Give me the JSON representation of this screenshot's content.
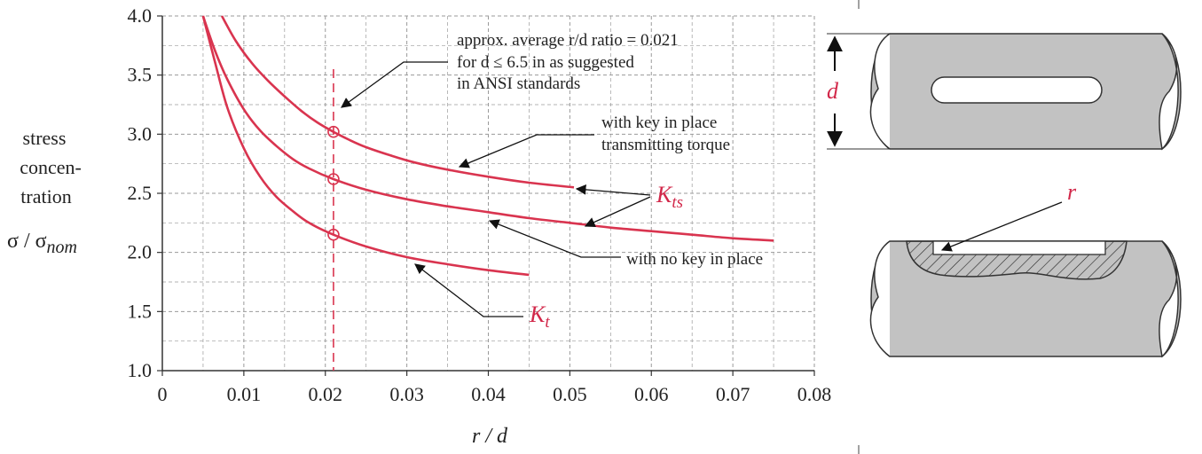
{
  "colors": {
    "curve": "#d9344f",
    "marker": "#d9344f",
    "grid": "#9a9a9a",
    "text": "#222222",
    "shaft_fill": "#c4c4c4"
  },
  "chart_data": {
    "type": "line",
    "xlabel": "r / d",
    "ylabel_lines": [
      "stress",
      "concen-",
      "tration"
    ],
    "ylabel_formula": {
      "sigma": "σ / σ",
      "sub": "nom"
    },
    "xlim": [
      0,
      0.08
    ],
    "ylim": [
      1.0,
      4.0
    ],
    "x_ticks": [
      "0",
      "0.01",
      "0.02",
      "0.03",
      "0.04",
      "0.05",
      "0.06",
      "0.07",
      "0.08"
    ],
    "y_ticks": [
      "1.0",
      "1.5",
      "2.0",
      "2.5",
      "3.0",
      "3.5",
      "4.0"
    ],
    "grid": true,
    "series": [
      {
        "x": [
          0.0073,
          0.009,
          0.011,
          0.013,
          0.015,
          0.017,
          0.019,
          0.021,
          0.023,
          0.025,
          0.028,
          0.031,
          0.035,
          0.04,
          0.045,
          0.0505
        ],
        "y": [
          4.0,
          3.79,
          3.6,
          3.45,
          3.32,
          3.2,
          3.1,
          3.02,
          2.95,
          2.89,
          2.82,
          2.76,
          2.7,
          2.64,
          2.59,
          2.55
        ]
      },
      {
        "x": [
          0.005,
          0.0065,
          0.008,
          0.01,
          0.012,
          0.014,
          0.016,
          0.018,
          0.021,
          0.025,
          0.03,
          0.035,
          0.04,
          0.045,
          0.05,
          0.055,
          0.06,
          0.065,
          0.07,
          0.075
        ],
        "y": [
          4.0,
          3.7,
          3.46,
          3.21,
          3.03,
          2.9,
          2.79,
          2.71,
          2.62,
          2.53,
          2.45,
          2.39,
          2.34,
          2.29,
          2.25,
          2.21,
          2.18,
          2.15,
          2.12,
          2.1
        ]
      },
      {
        "x": [
          0.005,
          0.0065,
          0.008,
          0.01,
          0.012,
          0.014,
          0.016,
          0.018,
          0.021,
          0.025,
          0.03,
          0.035,
          0.04,
          0.045
        ],
        "y": [
          4.0,
          3.6,
          3.22,
          2.88,
          2.64,
          2.47,
          2.35,
          2.25,
          2.15,
          2.05,
          1.96,
          1.9,
          1.85,
          1.81
        ]
      }
    ],
    "markers": [
      {
        "x": 0.021,
        "y": 3.02
      },
      {
        "x": 0.021,
        "y": 2.62
      },
      {
        "x": 0.021,
        "y": 2.15
      }
    ],
    "reference_x": 0.021,
    "annotations": {
      "ratio_line1": "approx. average r/d  ratio = 0.021",
      "ratio_line2": "for d ≤ 6.5 in as suggested",
      "ratio_line3": "in ANSI standards",
      "key_torque_line1": "with key in place",
      "key_torque_line2": "transmitting torque",
      "no_key": "with no key in place",
      "kts_symbol": "K",
      "kts_sub": "ts",
      "kt_symbol": "K",
      "kt_sub": "t"
    }
  },
  "diagram": {
    "d_label": "d",
    "r_label": "r"
  }
}
